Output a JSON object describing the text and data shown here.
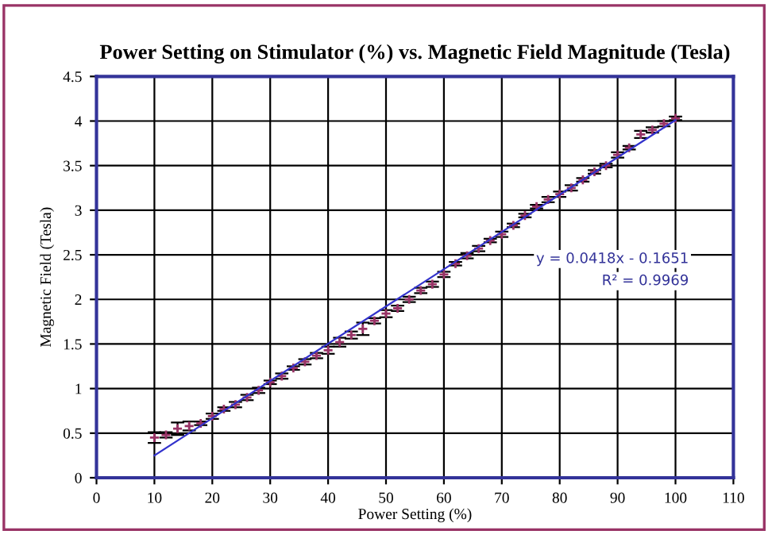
{
  "chart_data": {
    "type": "scatter",
    "title": "Power Setting on Stimulator (%) vs. Magnetic Field Magnitude (Tesla)",
    "xlabel": "Power Setting (%)",
    "ylabel": "Magnetic Field (Tesla)",
    "series": [
      {
        "color": "#993366",
        "marker": "cross",
        "x": [
          10,
          12,
          14,
          16,
          18,
          20,
          22,
          24,
          26,
          28,
          30,
          32,
          34,
          36,
          38,
          40,
          42,
          44,
          46,
          48,
          50,
          52,
          54,
          56,
          58,
          60,
          62,
          64,
          66,
          68,
          70,
          72,
          74,
          76,
          78,
          80,
          82,
          84,
          86,
          88,
          90,
          92,
          94,
          96,
          98,
          100
        ],
        "values": [
          0.45,
          0.48,
          0.55,
          0.58,
          0.61,
          0.69,
          0.77,
          0.82,
          0.9,
          0.98,
          1.07,
          1.14,
          1.23,
          1.3,
          1.37,
          1.43,
          1.52,
          1.6,
          1.67,
          1.76,
          1.84,
          1.9,
          2.0,
          2.1,
          2.17,
          2.28,
          2.4,
          2.49,
          2.57,
          2.66,
          2.73,
          2.83,
          2.94,
          3.04,
          3.12,
          3.18,
          3.25,
          3.34,
          3.43,
          3.5,
          3.62,
          3.7,
          3.85,
          3.9,
          3.97,
          4.03
        ],
        "errors": [
          0.06,
          0.03,
          0.07,
          0.05,
          0.02,
          0.03,
          0.02,
          0.03,
          0.03,
          0.03,
          0.02,
          0.03,
          0.02,
          0.03,
          0.03,
          0.04,
          0.05,
          0.04,
          0.07,
          0.03,
          0.04,
          0.03,
          0.03,
          0.03,
          0.03,
          0.03,
          0.02,
          0.03,
          0.03,
          0.02,
          0.03,
          0.02,
          0.02,
          0.02,
          0.03,
          0.03,
          0.03,
          0.02,
          0.02,
          0.02,
          0.03,
          0.02,
          0.04,
          0.03,
          0.03,
          0.02
        ]
      },
      {
        "type": "line",
        "color": "#3333cc",
        "x": [
          10,
          100
        ],
        "values": [
          0.25,
          4.01
        ]
      }
    ],
    "annotations": [
      "y = 0.0418x - 0.1651",
      "R² = 0.9969"
    ],
    "xlim": [
      0,
      110
    ],
    "xticks": [
      0,
      10,
      20,
      30,
      40,
      50,
      60,
      70,
      80,
      90,
      100,
      110
    ],
    "ylim": [
      0,
      4.5
    ],
    "yticks": [
      0,
      0.5,
      1,
      1.5,
      2,
      2.5,
      3,
      3.5,
      4,
      4.5
    ],
    "grid": true,
    "legend": false
  }
}
